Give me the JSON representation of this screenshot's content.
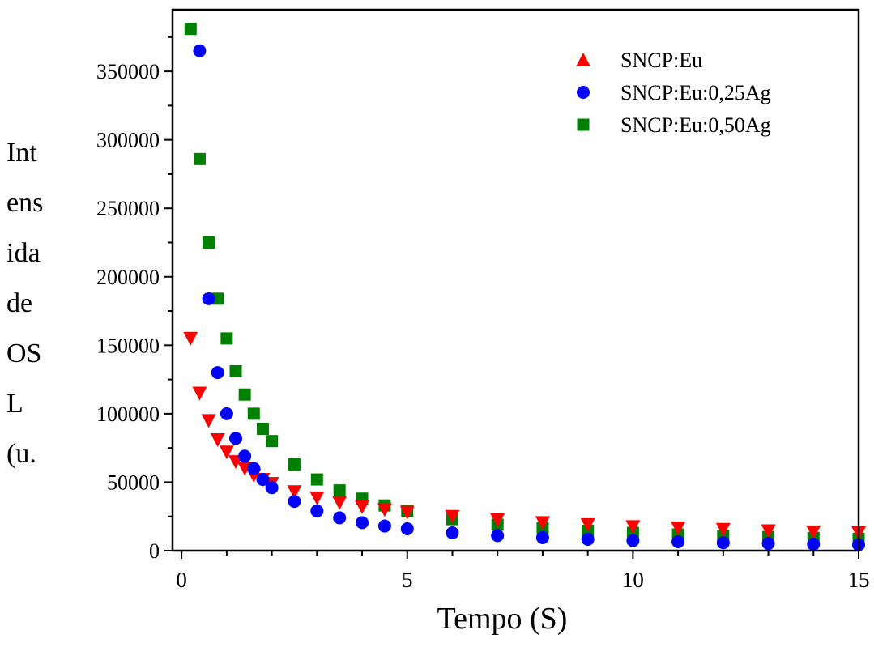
{
  "chart_data": {
    "type": "scatter",
    "xlabel": "Tempo (S)",
    "ylabel_lines": [
      "Int",
      "ens",
      "ida",
      "de",
      "OS",
      "L",
      "(u."
    ],
    "xlim": [
      -0.2,
      15
    ],
    "ylim": [
      0,
      395000
    ],
    "xticks": [
      0,
      5,
      10,
      15
    ],
    "yticks": [
      0,
      50000,
      100000,
      150000,
      200000,
      250000,
      300000,
      350000
    ],
    "legend_position": "top-right",
    "series": [
      {
        "name": "SNCP:Eu",
        "marker": "triangle",
        "color": "#ff0000",
        "points": [
          [
            0.2,
            155000
          ],
          [
            0.4,
            115000
          ],
          [
            0.6,
            95000
          ],
          [
            0.8,
            81000
          ],
          [
            1.0,
            72000
          ],
          [
            1.2,
            65000
          ],
          [
            1.4,
            60000
          ],
          [
            1.6,
            55000
          ],
          [
            1.8,
            52000
          ],
          [
            2.0,
            49000
          ],
          [
            2.5,
            43000
          ],
          [
            3.0,
            38500
          ],
          [
            3.5,
            35000
          ],
          [
            4.0,
            32000
          ],
          [
            4.5,
            30000
          ],
          [
            5.0,
            28000
          ],
          [
            6.0,
            25000
          ],
          [
            7.0,
            22500
          ],
          [
            8.0,
            20500
          ],
          [
            9.0,
            19000
          ],
          [
            10.0,
            17500
          ],
          [
            11.0,
            16500
          ],
          [
            12.0,
            15500
          ],
          [
            13.0,
            14500
          ],
          [
            14.0,
            13700
          ],
          [
            15.0,
            13000
          ]
        ]
      },
      {
        "name": "SNCP:Eu:0,25Ag",
        "marker": "circle",
        "color": "#0000ff",
        "points": [
          [
            0.4,
            365000
          ],
          [
            0.6,
            184000
          ],
          [
            0.8,
            130000
          ],
          [
            1.0,
            100000
          ],
          [
            1.2,
            82000
          ],
          [
            1.4,
            69000
          ],
          [
            1.6,
            60000
          ],
          [
            1.8,
            52000
          ],
          [
            2.0,
            46000
          ],
          [
            2.5,
            36000
          ],
          [
            3.0,
            29000
          ],
          [
            3.5,
            24000
          ],
          [
            4.0,
            20500
          ],
          [
            4.5,
            18000
          ],
          [
            5.0,
            16000
          ],
          [
            6.0,
            13000
          ],
          [
            7.0,
            11000
          ],
          [
            8.0,
            9500
          ],
          [
            9.0,
            8300
          ],
          [
            10.0,
            7300
          ],
          [
            11.0,
            6500
          ],
          [
            12.0,
            5800
          ],
          [
            13.0,
            5200
          ],
          [
            14.0,
            4700
          ],
          [
            15.0,
            4300
          ]
        ]
      },
      {
        "name": "SNCP:Eu:0,50Ag",
        "marker": "square",
        "color": "#008000",
        "points": [
          [
            0.2,
            381000
          ],
          [
            0.4,
            286000
          ],
          [
            0.6,
            225000
          ],
          [
            0.8,
            184000
          ],
          [
            1.0,
            155000
          ],
          [
            1.2,
            131000
          ],
          [
            1.4,
            114000
          ],
          [
            1.6,
            100000
          ],
          [
            1.8,
            89000
          ],
          [
            2.0,
            80000
          ],
          [
            2.5,
            63000
          ],
          [
            3.0,
            52000
          ],
          [
            3.5,
            44000
          ],
          [
            4.0,
            38000
          ],
          [
            4.5,
            33000
          ],
          [
            5.0,
            29000
          ],
          [
            6.0,
            23000
          ],
          [
            7.0,
            19000
          ],
          [
            8.0,
            16500
          ],
          [
            9.0,
            14500
          ],
          [
            10.0,
            13000
          ],
          [
            11.0,
            11800
          ],
          [
            12.0,
            10800
          ],
          [
            13.0,
            10000
          ],
          [
            14.0,
            9300
          ],
          [
            15.0,
            8700
          ]
        ]
      }
    ]
  }
}
